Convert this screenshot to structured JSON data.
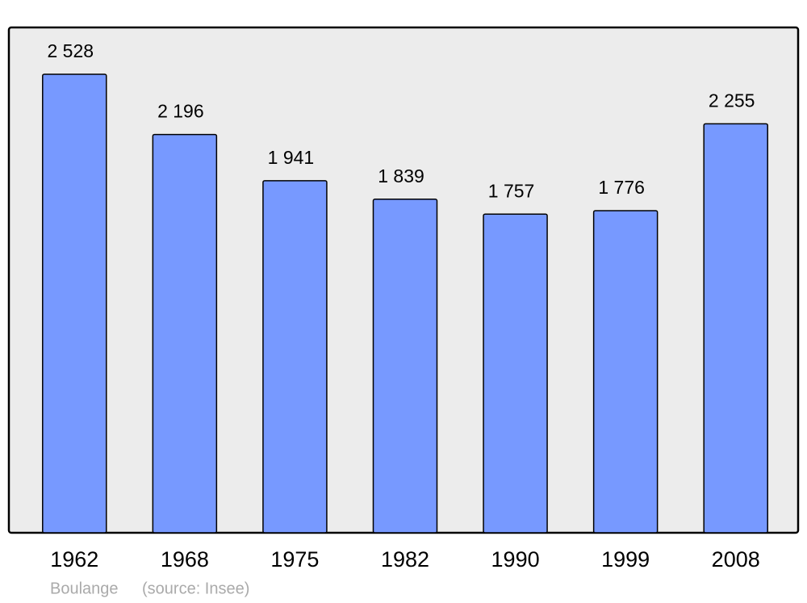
{
  "chart_data": {
    "type": "bar",
    "categories": [
      "1962",
      "1968",
      "1975",
      "1982",
      "1990",
      "1999",
      "2008"
    ],
    "values": [
      2528,
      2196,
      1941,
      1839,
      1757,
      1776,
      2255
    ],
    "value_labels": [
      "2 528",
      "2 196",
      "1 941",
      "1 839",
      "1 757",
      "1 776",
      "2 255"
    ],
    "color": "#7799ff",
    "ylim": [
      0,
      2786
    ],
    "caption_name": "Boulange",
    "caption_source": "(source: Insee)"
  }
}
